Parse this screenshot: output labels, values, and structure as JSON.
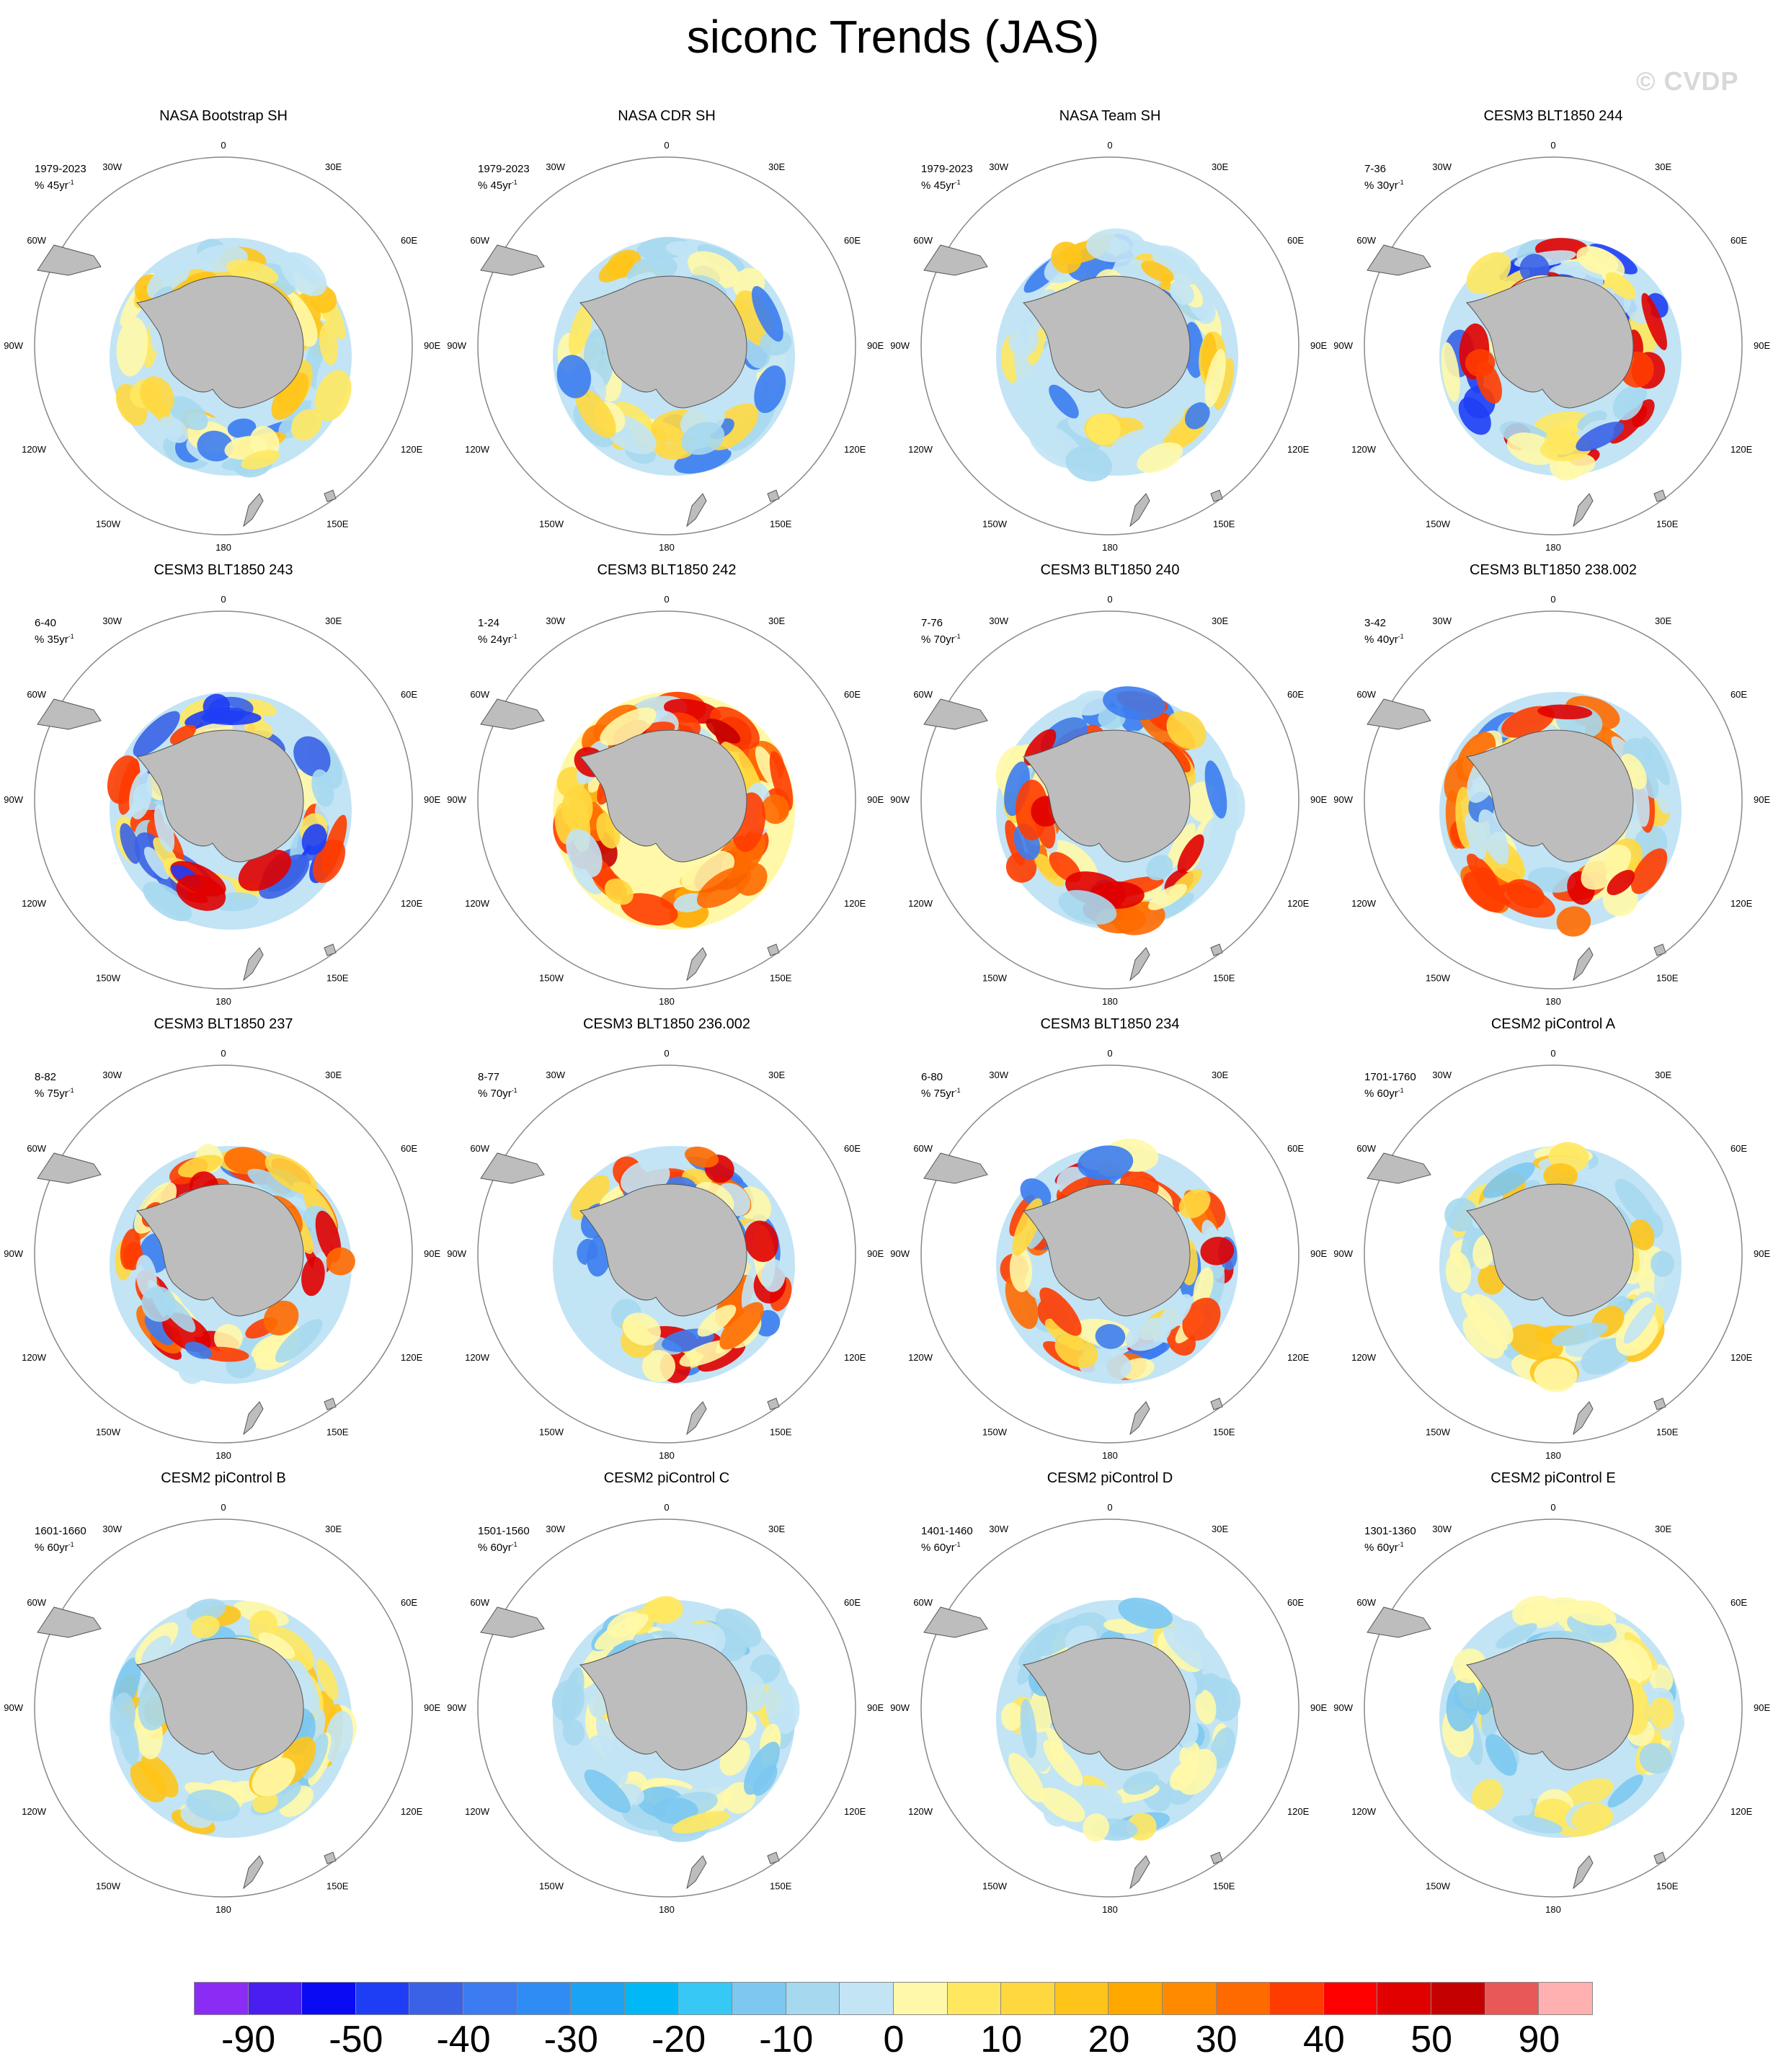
{
  "title": "siconc Trends (JAS)",
  "watermark": "© CVDP",
  "lon_labels": {
    "top": "0",
    "r30": "30E",
    "r60": "60E",
    "r90": "90E",
    "r120": "120E",
    "r150": "150E",
    "bottom": "180",
    "l30": "30W",
    "l60": "60W",
    "l90": "90W",
    "l120": "120W",
    "l150": "150W"
  },
  "panels": [
    {
      "title": "NASA Bootstrap SH",
      "period": "1979-2023",
      "pct": "% 45yr",
      "pattern": "obs"
    },
    {
      "title": "NASA CDR SH",
      "period": "1979-2023",
      "pct": "% 45yr",
      "pattern": "obs"
    },
    {
      "title": "NASA Team SH",
      "period": "1979-2023",
      "pct": "% 45yr",
      "pattern": "obs"
    },
    {
      "title": "CESM3 BLT1850 244",
      "period": "7-36",
      "pct": "% 30yr",
      "pattern": "mixed-strong"
    },
    {
      "title": "CESM3 BLT1850 243",
      "period": "6-40",
      "pct": "% 35yr",
      "pattern": "mixed-strong"
    },
    {
      "title": "CESM3 BLT1850 242",
      "period": "1-24",
      "pct": "% 24yr",
      "pattern": "red-strong"
    },
    {
      "title": "CESM3 BLT1850 240",
      "period": "7-76",
      "pct": "% 70yr",
      "pattern": "red"
    },
    {
      "title": "CESM3 BLT1850 238.002",
      "period": "3-42",
      "pct": "% 40yr",
      "pattern": "red"
    },
    {
      "title": "CESM3 BLT1850 237",
      "period": "8-82",
      "pct": "% 75yr",
      "pattern": "red"
    },
    {
      "title": "CESM3 BLT1850 236.002",
      "period": "8-77",
      "pct": "% 70yr",
      "pattern": "red"
    },
    {
      "title": "CESM3 BLT1850 234",
      "period": "6-80",
      "pct": "% 75yr",
      "pattern": "red"
    },
    {
      "title": "CESM2 piControl A",
      "period": "1701-1760",
      "pct": "% 60yr",
      "pattern": "pi"
    },
    {
      "title": "CESM2 piControl B",
      "period": "1601-1660",
      "pct": "% 60yr",
      "pattern": "pi"
    },
    {
      "title": "CESM2 piControl C",
      "period": "1501-1560",
      "pct": "% 60yr",
      "pattern": "pi-weak"
    },
    {
      "title": "CESM2 piControl D",
      "period": "1401-1460",
      "pct": "% 60yr",
      "pattern": "pi-weak"
    },
    {
      "title": "CESM2 piControl E",
      "period": "1301-1360",
      "pct": "% 60yr",
      "pattern": "pi-weak"
    }
  ],
  "colorbar": {
    "colors": [
      "#8b2cf5",
      "#4a1ef0",
      "#0a0af5",
      "#1e3ef5",
      "#3a62e6",
      "#3c7cf0",
      "#2f8cf5",
      "#1aa3f5",
      "#00b8f5",
      "#38c8f5",
      "#7cc8f0",
      "#a6d8f0",
      "#c2e4f5",
      "#fff8a8",
      "#ffe860",
      "#ffd840",
      "#ffc41a",
      "#ffa800",
      "#ff8a00",
      "#ff6a00",
      "#ff3c00",
      "#ff0000",
      "#e00000",
      "#c40000",
      "#e85858",
      "#ffb0b0"
    ],
    "labels": [
      "-90",
      "-50",
      "-40",
      "-30",
      "-20",
      "-10",
      "0",
      "10",
      "20",
      "30",
      "40",
      "50",
      "90"
    ]
  }
}
